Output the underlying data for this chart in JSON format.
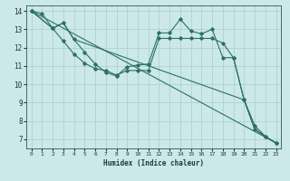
{
  "xlabel": "Humidex (Indice chaleur)",
  "background_color": "#cce8e8",
  "grid_color": "#aacece",
  "line_color": "#2a7068",
  "xlim": [
    -0.5,
    23.5
  ],
  "ylim": [
    6.5,
    14.3
  ],
  "xticks": [
    0,
    1,
    2,
    3,
    4,
    5,
    6,
    7,
    8,
    9,
    10,
    11,
    12,
    13,
    14,
    15,
    16,
    17,
    18,
    19,
    20,
    21,
    22,
    23
  ],
  "yticks": [
    7,
    8,
    9,
    10,
    11,
    12,
    13,
    14
  ],
  "lines": [
    {
      "x": [
        0,
        1,
        2,
        3,
        4,
        5,
        6,
        7,
        8,
        9,
        10,
        11,
        12,
        13,
        14,
        15,
        16,
        17,
        18,
        19,
        20,
        21,
        22,
        23
      ],
      "y": [
        14,
        13.85,
        13.05,
        13.35,
        12.45,
        11.75,
        11.1,
        10.65,
        10.45,
        10.95,
        11.05,
        11.1,
        12.8,
        12.8,
        13.55,
        12.9,
        12.75,
        13.0,
        11.45,
        11.45,
        9.15,
        7.55,
        7.15,
        6.8
      ],
      "markers": true
    },
    {
      "x": [
        0,
        2,
        3,
        4,
        5,
        6,
        7,
        8,
        9,
        10,
        11,
        12,
        13,
        14,
        15,
        16,
        17,
        18,
        19,
        20,
        21,
        22,
        23
      ],
      "y": [
        14,
        13.05,
        12.35,
        11.65,
        11.15,
        10.85,
        10.75,
        10.5,
        10.75,
        10.75,
        10.75,
        12.5,
        12.5,
        12.5,
        12.5,
        12.5,
        12.5,
        12.25,
        11.45,
        9.15,
        7.75,
        7.15,
        6.8
      ],
      "markers": true
    },
    {
      "x": [
        0,
        23
      ],
      "y": [
        14.0,
        6.8
      ],
      "markers": false
    },
    {
      "x": [
        0,
        2,
        3,
        4,
        20,
        21,
        22,
        23
      ],
      "y": [
        14,
        13.05,
        13.35,
        12.45,
        9.15,
        7.55,
        7.15,
        6.8
      ],
      "markers": false
    }
  ]
}
